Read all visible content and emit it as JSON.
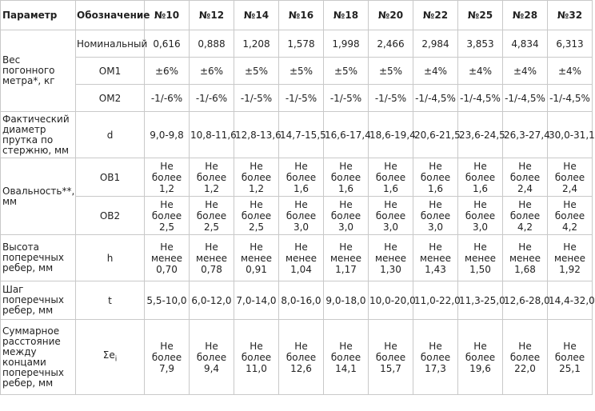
{
  "headers": [
    "Параметр",
    "Обозначение",
    "№10",
    "№12",
    "№14",
    "№16",
    "№18",
    "№20",
    "№22",
    "№25",
    "№28",
    "№32"
  ],
  "weight": {
    "param": "Вес погонного метра*, кг",
    "rows": [
      {
        "code": "Номинальный",
        "values": [
          "0,616",
          "0,888",
          "1,208",
          "1,578",
          "1,998",
          "2,466",
          "2,984",
          "3,853",
          "4,834",
          "6,313"
        ]
      },
      {
        "code": "ОМ1",
        "values": [
          "±6%",
          "±6%",
          "±5%",
          "±5%",
          "±5%",
          "±5%",
          "±4%",
          "±4%",
          "±4%",
          "±4%"
        ]
      },
      {
        "code": "ОМ2",
        "values": [
          "-1/-6%",
          "-1/-6%",
          "-1/-5%",
          "-1/-5%",
          "-1/-5%",
          "-1/-5%",
          "-1/-4,5%",
          "-1/-4,5%",
          "-1/-4,5%",
          "-1/-4,5%"
        ]
      }
    ]
  },
  "diameter": {
    "param": "Фактический диаметр прутка по стержню, мм",
    "code": "d",
    "values": [
      "9,0-9,8",
      "10,8-11,6",
      "12,8-13,6",
      "14,7-15,5",
      "16,6-17,4",
      "18,6-19,4",
      "20,6-21,5",
      "23,6-24,5",
      "26,3-27,4",
      "30,0-31,1"
    ]
  },
  "ovality": {
    "param": "Овальность**, мм",
    "rows": [
      {
        "code": "ОВ1",
        "prefix": "Не более",
        "values": [
          "1,2",
          "1,2",
          "1,2",
          "1,6",
          "1,6",
          "1,6",
          "1,6",
          "1,6",
          "2,4",
          "2,4"
        ]
      },
      {
        "code": "ОВ2",
        "prefix": "Не более",
        "values": [
          "2,5",
          "2,5",
          "2,5",
          "3,0",
          "3,0",
          "3,0",
          "3,0",
          "3,0",
          "4,2",
          "4,2"
        ]
      }
    ]
  },
  "rib_height": {
    "param": "Высота поперечных ребер, мм",
    "code": "h",
    "prefix": "Не менее",
    "values": [
      "0,70",
      "0,78",
      "0,91",
      "1,04",
      "1,17",
      "1,30",
      "1,43",
      "1,50",
      "1,68",
      "1,92"
    ]
  },
  "rib_step": {
    "param": "Шаг поперечных ребер, мм",
    "code": "t",
    "values": [
      "5,5-10,0",
      "6,0-12,0",
      "7,0-14,0",
      "8,0-16,0",
      "9,0-18,0",
      "10,0-20,0",
      "11,0-22,0",
      "11,3-25,0",
      "12,6-28,0",
      "14,4-32,0"
    ]
  },
  "sum_distance": {
    "param": "Суммарное расстояние между концами поперечных ребер, мм",
    "code_main": "Σe",
    "code_sub": "i",
    "prefix": "Не более",
    "values": [
      "7,9",
      "9,4",
      "11,0",
      "12,6",
      "14,1",
      "15,7",
      "17,3",
      "19,6",
      "22,0",
      "25,1"
    ]
  }
}
